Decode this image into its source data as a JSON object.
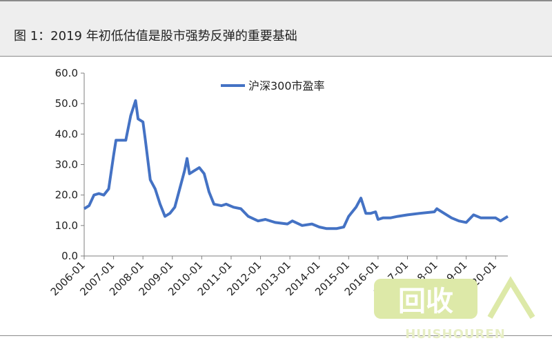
{
  "title": "图 1：2019 年初低估值是股市强势反弹的重要基础",
  "colors": {
    "line": "#4472c4",
    "axis": "#7f7f7f",
    "background": "#ffffff",
    "title_bg": "#eeeeee",
    "watermark_fill": "#dde9a8",
    "watermark_text": "#e7eec4"
  },
  "watermark": {
    "logo_text": "回收",
    "sub_text": "HUISHOUREN"
  },
  "chart_data": {
    "type": "line",
    "title": "",
    "xlabel": "",
    "ylabel": "",
    "ylim": [
      0,
      60
    ],
    "y_ticks": [
      "0.0",
      "10.0",
      "20.0",
      "30.0",
      "40.0",
      "50.0",
      "60.0"
    ],
    "x_ticks": [
      "2006-01",
      "2007-01",
      "2008-01",
      "2009-01",
      "2010-01",
      "2011-01",
      "2012-01",
      "2013-01",
      "2014-01",
      "2015-01",
      "2016-01",
      "2017-01",
      "2018-01",
      "2019-01",
      "2020-01"
    ],
    "x_range": [
      "2006-01",
      "2020-06"
    ],
    "legend_position": "top-center",
    "grid": false,
    "series": [
      {
        "name": "沪深300市盈率",
        "points": [
          [
            "2006-01",
            15.5
          ],
          [
            "2006-03",
            16.5
          ],
          [
            "2006-05",
            20
          ],
          [
            "2006-07",
            20.5
          ],
          [
            "2006-09",
            20
          ],
          [
            "2006-11",
            22
          ],
          [
            "2007-01",
            33
          ],
          [
            "2007-02",
            38
          ],
          [
            "2007-04",
            38
          ],
          [
            "2007-06",
            38
          ],
          [
            "2007-08",
            46
          ],
          [
            "2007-10",
            51
          ],
          [
            "2007-11",
            45
          ],
          [
            "2008-01",
            44
          ],
          [
            "2008-02",
            38
          ],
          [
            "2008-04",
            25
          ],
          [
            "2008-06",
            22
          ],
          [
            "2008-08",
            17
          ],
          [
            "2008-10",
            13
          ],
          [
            "2008-12",
            14
          ],
          [
            "2009-02",
            16
          ],
          [
            "2009-04",
            22
          ],
          [
            "2009-06",
            28
          ],
          [
            "2009-07",
            32
          ],
          [
            "2009-08",
            27
          ],
          [
            "2009-10",
            28
          ],
          [
            "2009-12",
            29
          ],
          [
            "2010-02",
            27
          ],
          [
            "2010-04",
            21
          ],
          [
            "2010-06",
            17
          ],
          [
            "2010-09",
            16.5
          ],
          [
            "2010-11",
            17
          ],
          [
            "2011-02",
            16
          ],
          [
            "2011-05",
            15.5
          ],
          [
            "2011-08",
            13
          ],
          [
            "2011-12",
            11.5
          ],
          [
            "2012-03",
            12
          ],
          [
            "2012-07",
            11
          ],
          [
            "2012-12",
            10.5
          ],
          [
            "2013-02",
            11.5
          ],
          [
            "2013-06",
            10
          ],
          [
            "2013-10",
            10.5
          ],
          [
            "2014-01",
            9.5
          ],
          [
            "2014-04",
            9
          ],
          [
            "2014-08",
            9
          ],
          [
            "2014-11",
            9.5
          ],
          [
            "2015-01",
            13
          ],
          [
            "2015-04",
            16
          ],
          [
            "2015-06",
            19
          ],
          [
            "2015-08",
            14
          ],
          [
            "2015-10",
            14
          ],
          [
            "2015-12",
            14.5
          ],
          [
            "2016-01",
            12
          ],
          [
            "2016-03",
            12.5
          ],
          [
            "2016-06",
            12.5
          ],
          [
            "2016-09",
            13
          ],
          [
            "2017-01",
            13.5
          ],
          [
            "2017-06",
            14
          ],
          [
            "2017-12",
            14.5
          ],
          [
            "2018-01",
            15.5
          ],
          [
            "2018-04",
            14
          ],
          [
            "2018-07",
            12.5
          ],
          [
            "2018-10",
            11.5
          ],
          [
            "2019-01",
            11
          ],
          [
            "2019-04",
            13.5
          ],
          [
            "2019-07",
            12.5
          ],
          [
            "2019-10",
            12.5
          ],
          [
            "2020-01",
            12.5
          ],
          [
            "2020-03",
            11.5
          ],
          [
            "2020-06",
            13
          ]
        ]
      }
    ]
  }
}
